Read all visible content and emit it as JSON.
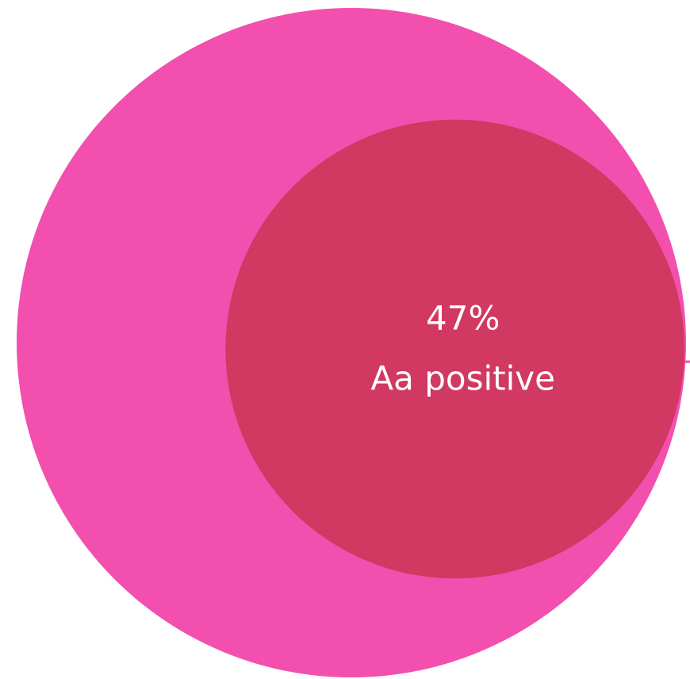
{
  "chart_data": {
    "type": "proportional-circle",
    "categories": [
      "Aa positive"
    ],
    "values": [
      47
    ],
    "value_labels": [
      "47%"
    ],
    "color": "#d13862",
    "background_color": "#f24fae"
  }
}
